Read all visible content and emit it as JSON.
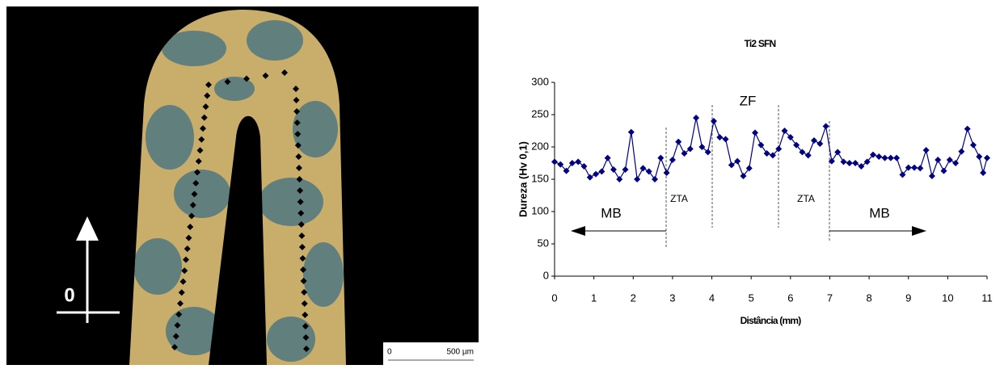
{
  "micrograph": {
    "origin_label": "0",
    "scale_labels": [
      "0",
      "500 µm"
    ]
  },
  "chart_data": {
    "type": "line",
    "title": "Ti2 SFN",
    "x_label": "Distância (mm)",
    "y_label": "Dureza (Hv 0,1)",
    "annotations": [
      "ZF",
      "ZTA",
      "ZTA",
      "MB",
      "MB"
    ],
    "x": [
      0,
      0.15,
      0.3,
      0.45,
      0.6,
      0.75,
      0.9,
      1.05,
      1.2,
      1.35,
      1.5,
      1.65,
      1.8,
      1.95,
      2.1,
      2.25,
      2.4,
      2.55,
      2.7,
      2.85,
      3.0,
      3.15,
      3.3,
      3.45,
      3.6,
      3.75,
      3.9,
      4.05,
      4.2,
      4.35,
      4.5,
      4.65,
      4.8,
      4.95,
      5.1,
      5.25,
      5.4,
      5.55,
      5.7,
      5.85,
      6.0,
      6.15,
      6.3,
      6.45,
      6.6,
      6.75,
      6.9,
      7.05,
      7.2,
      7.35,
      7.5,
      7.65,
      7.8,
      7.95,
      8.1,
      8.25,
      8.4,
      8.55,
      8.7,
      8.85,
      9.0,
      9.15,
      9.3,
      9.45,
      9.6,
      9.75,
      9.9,
      10.05,
      10.2,
      10.35,
      10.5,
      10.65,
      10.8,
      10.9,
      11.0
    ],
    "series": [
      {
        "name": "Ti2 SFN",
        "color": "#000080",
        "values": [
          177,
          173,
          163,
          175,
          177,
          170,
          153,
          158,
          162,
          183,
          165,
          150,
          165,
          223,
          150,
          167,
          162,
          150,
          183,
          160,
          180,
          208,
          190,
          197,
          245,
          200,
          192,
          240,
          215,
          212,
          172,
          178,
          155,
          167,
          222,
          203,
          190,
          187,
          197,
          225,
          215,
          203,
          192,
          187,
          210,
          205,
          232,
          178,
          192,
          177,
          175,
          175,
          170,
          177,
          188,
          185,
          183,
          183,
          183,
          157,
          168,
          168,
          167,
          195,
          155,
          180,
          163,
          180,
          175,
          193,
          228,
          203,
          185,
          160,
          183
        ]
      }
    ],
    "xlim": [
      0,
      11
    ],
    "xticks": [
      0,
      1,
      2,
      3,
      4,
      5,
      6,
      7,
      8,
      9,
      10,
      11
    ],
    "ylim": [
      0,
      300
    ],
    "yticks": [
      0,
      50,
      100,
      150,
      200,
      250,
      300
    ],
    "grid": false
  }
}
